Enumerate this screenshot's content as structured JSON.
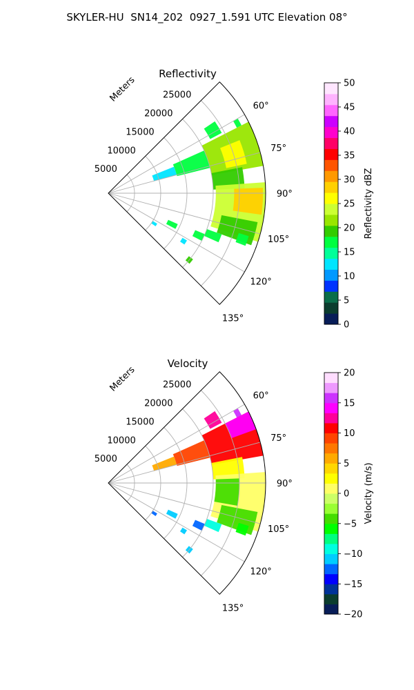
{
  "figure_title": "SKYLER-HU  SN14_202  0927_1.591 UTC Elevation 08°",
  "colors": {
    "grid": "#b0b0b0",
    "frame": "#000000",
    "reflectivity_scale": [
      "#081d58",
      "#0b3d2e",
      "#0a6e4a",
      "#0033ff",
      "#0099ff",
      "#00e5ff",
      "#00ff99",
      "#00ff40",
      "#33cc00",
      "#99e600",
      "#ccff33",
      "#ffff00",
      "#ffd000",
      "#ff9900",
      "#ff5500",
      "#ff0000",
      "#ff0066",
      "#ff00cc",
      "#cc00ff",
      "#ff66ff",
      "#ffb3ff",
      "#ffe6ff"
    ],
    "velocity_scale": [
      "#081d58",
      "#0b3d2e",
      "#003399",
      "#0000ff",
      "#0066ff",
      "#00ccff",
      "#00ffe0",
      "#00ff80",
      "#00ff00",
      "#44dd00",
      "#99ff33",
      "#ccff66",
      "#ffff66",
      "#ffff00",
      "#ffd700",
      "#ffaa00",
      "#ff7700",
      "#ff4400",
      "#ff0000",
      "#ff0099",
      "#ff00ff",
      "#cc33ff",
      "#ee99ff",
      "#ffddff"
    ]
  },
  "chart_data": [
    {
      "type": "heatmap",
      "projection": "polar-sector",
      "title": "Reflectivity",
      "radial_axis_label": "Meters",
      "radial_ticks": [
        5000,
        10000,
        15000,
        20000,
        25000
      ],
      "radial_tick_labels": [
        "5000",
        "10000",
        "15000",
        "20000",
        "25000"
      ],
      "rlim": [
        0,
        30000
      ],
      "azimuth_range_deg": [
        45,
        135
      ],
      "azimuth_ticks_deg": [
        45,
        60,
        75,
        90,
        105,
        120,
        135
      ],
      "azimuth_tick_labels": [
        "",
        "60°",
        "75°",
        "90°",
        "105°",
        "120°",
        "135°"
      ],
      "grid": true,
      "colorbar": {
        "label": "Reflectivity dBZ",
        "range": [
          0,
          50
        ],
        "ticks": [
          0,
          5,
          10,
          15,
          20,
          25,
          30,
          35,
          40,
          45,
          50
        ],
        "tick_labels": [
          "0",
          "5",
          "10",
          "15",
          "20",
          "25",
          "30",
          "35",
          "40",
          "45",
          "50"
        ]
      },
      "echo_regions": [
        {
          "az": [
            56,
            62
          ],
          "r": [
            22000,
            24500
          ],
          "value": 18
        },
        {
          "az": [
            60,
            63
          ],
          "r": [
            27500,
            28500
          ],
          "value": 18
        },
        {
          "az": [
            68,
            75
          ],
          "r": [
            9000,
            13500
          ],
          "value": 12
        },
        {
          "az": [
            66,
            76
          ],
          "r": [
            13500,
            20000
          ],
          "value": 17
        },
        {
          "az": [
            63,
            80
          ],
          "r": [
            20000,
            30000
          ],
          "value": 22
        },
        {
          "az": [
            68,
            78
          ],
          "r": [
            23000,
            27000
          ],
          "value": 26
        },
        {
          "az": [
            79,
            88
          ],
          "r": [
            20000,
            26000
          ],
          "value": 20
        },
        {
          "az": [
            86,
            108
          ],
          "r": [
            20500,
            30000
          ],
          "value": 24
        },
        {
          "az": [
            88,
            98
          ],
          "r": [
            24000,
            29500
          ],
          "value": 28
        },
        {
          "az": [
            101,
            110
          ],
          "r": [
            22000,
            29000
          ],
          "value": 20
        },
        {
          "az": [
            114,
            118
          ],
          "r": [
            12500,
            14500
          ],
          "value": 16
        },
        {
          "az": [
            113,
            117
          ],
          "r": [
            18000,
            20000
          ],
          "value": 17
        },
        {
          "az": [
            110,
            114
          ],
          "r": [
            20000,
            23000
          ],
          "value": 18
        },
        {
          "az": [
            107,
            111
          ],
          "r": [
            26000,
            28000
          ],
          "value": 18
        },
        {
          "az": [
            122,
            125
          ],
          "r": [
            10000,
            11000
          ],
          "value": 13
        },
        {
          "az": [
            121,
            124
          ],
          "r": [
            16500,
            17500
          ],
          "value": 12
        },
        {
          "az": [
            128,
            131
          ],
          "r": [
            19500,
            20500
          ],
          "value": 20
        }
      ]
    },
    {
      "type": "heatmap",
      "projection": "polar-sector",
      "title": "Velocity",
      "radial_axis_label": "Meters",
      "radial_ticks": [
        5000,
        10000,
        15000,
        20000,
        25000
      ],
      "radial_tick_labels": [
        "5000",
        "10000",
        "15000",
        "20000",
        "25000"
      ],
      "rlim": [
        0,
        30000
      ],
      "azimuth_range_deg": [
        45,
        135
      ],
      "azimuth_ticks_deg": [
        45,
        60,
        75,
        90,
        105,
        120,
        135
      ],
      "azimuth_tick_labels": [
        "",
        "60°",
        "75°",
        "90°",
        "105°",
        "120°",
        "135°"
      ],
      "grid": true,
      "colorbar": {
        "label": "Velocity (m/s)",
        "range": [
          -20,
          20
        ],
        "ticks": [
          -20,
          -15,
          -10,
          -5,
          0,
          5,
          10,
          15,
          20
        ],
        "tick_labels": [
          "−20",
          "−15",
          "−10",
          "−5",
          "0",
          "5",
          "10",
          "15",
          "20"
        ]
      },
      "echo_regions": [
        {
          "az": [
            56,
            62
          ],
          "r": [
            22000,
            24500
          ],
          "value": 13
        },
        {
          "az": [
            60,
            63
          ],
          "r": [
            27500,
            28500
          ],
          "value": 15
        },
        {
          "az": [
            68,
            75
          ],
          "r": [
            9000,
            13500
          ],
          "value": 5
        },
        {
          "az": [
            66,
            76
          ],
          "r": [
            13500,
            20000
          ],
          "value": 9
        },
        {
          "az": [
            63,
            80
          ],
          "r": [
            20000,
            30000
          ],
          "value": 10
        },
        {
          "az": [
            63,
            70
          ],
          "r": [
            25000,
            30000
          ],
          "value": 14
        },
        {
          "az": [
            79,
            88
          ],
          "r": [
            20000,
            26000
          ],
          "value": 3
        },
        {
          "az": [
            86,
            108
          ],
          "r": [
            20500,
            30000
          ],
          "value": 1
        },
        {
          "az": [
            88,
            100
          ],
          "r": [
            20500,
            25000
          ],
          "value": -4
        },
        {
          "az": [
            101,
            110
          ],
          "r": [
            22000,
            29000
          ],
          "value": -5
        },
        {
          "az": [
            114,
            118
          ],
          "r": [
            12500,
            14500
          ],
          "value": -11
        },
        {
          "az": [
            113,
            117
          ],
          "r": [
            18000,
            20000
          ],
          "value": -12
        },
        {
          "az": [
            110,
            114
          ],
          "r": [
            20000,
            23000
          ],
          "value": -10
        },
        {
          "az": [
            107,
            111
          ],
          "r": [
            26000,
            28000
          ],
          "value": -6
        },
        {
          "az": [
            122,
            125
          ],
          "r": [
            10000,
            11000
          ],
          "value": -12
        },
        {
          "az": [
            121,
            124
          ],
          "r": [
            16500,
            17500
          ],
          "value": -11
        },
        {
          "az": [
            128,
            131
          ],
          "r": [
            19500,
            20500
          ],
          "value": -11
        }
      ]
    }
  ]
}
